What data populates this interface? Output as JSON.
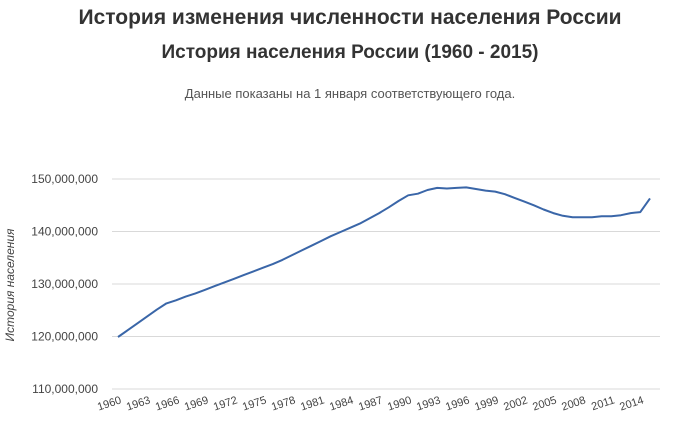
{
  "page": {
    "heading": "История изменения численности населения России"
  },
  "chart_data": {
    "type": "line",
    "title": "История населения России (1960 - 2015)",
    "subtitle": "Данные показаны на 1 января соответствующего года.",
    "ylabel": "История населения",
    "xlabel": "",
    "ylim": [
      110000000,
      150000000
    ],
    "yticks": [
      {
        "value": 110000000,
        "label": "110,000,000"
      },
      {
        "value": 120000000,
        "label": "120,000,000"
      },
      {
        "value": 130000000,
        "label": "130,000,000"
      },
      {
        "value": 140000000,
        "label": "140,000,000"
      },
      {
        "value": 150000000,
        "label": "150,000,000"
      }
    ],
    "xticks": [
      {
        "value": 1960,
        "label": "1960"
      },
      {
        "value": 1963,
        "label": "1963"
      },
      {
        "value": 1966,
        "label": "1966"
      },
      {
        "value": 1969,
        "label": "1969"
      },
      {
        "value": 1972,
        "label": "1972"
      },
      {
        "value": 1975,
        "label": "1975"
      },
      {
        "value": 1978,
        "label": "1978"
      },
      {
        "value": 1981,
        "label": "1981"
      },
      {
        "value": 1984,
        "label": "1984"
      },
      {
        "value": 1987,
        "label": "1987"
      },
      {
        "value": 1990,
        "label": "1990"
      },
      {
        "value": 1993,
        "label": "1993"
      },
      {
        "value": 1996,
        "label": "1996"
      },
      {
        "value": 1999,
        "label": "1999"
      },
      {
        "value": 2002,
        "label": "2002"
      },
      {
        "value": 2005,
        "label": "2005"
      },
      {
        "value": 2008,
        "label": "2008"
      },
      {
        "value": 2011,
        "label": "2011"
      },
      {
        "value": 2014,
        "label": "2014"
      }
    ],
    "grid": true,
    "line_color": "#3a66a8",
    "series": [
      {
        "x": [
          1960,
          1961,
          1962,
          1963,
          1964,
          1965,
          1966,
          1967,
          1968,
          1969,
          1970,
          1971,
          1972,
          1973,
          1974,
          1975,
          1976,
          1977,
          1978,
          1979,
          1980,
          1981,
          1982,
          1983,
          1984,
          1985,
          1986,
          1987,
          1988,
          1989,
          1990,
          1991,
          1992,
          1993,
          1994,
          1995,
          1996,
          1997,
          1998,
          1999,
          2000,
          2001,
          2002,
          2003,
          2004,
          2005,
          2006,
          2007,
          2008,
          2009,
          2010,
          2011,
          2012,
          2013,
          2014,
          2015
        ],
        "values": [
          119900000,
          121200000,
          122500000,
          123800000,
          125100000,
          126300000,
          126900000,
          127600000,
          128200000,
          128900000,
          129600000,
          130300000,
          131000000,
          131700000,
          132400000,
          133100000,
          133800000,
          134600000,
          135500000,
          136400000,
          137300000,
          138200000,
          139100000,
          139900000,
          140700000,
          141500000,
          142500000,
          143500000,
          144600000,
          145800000,
          146900000,
          147200000,
          147900000,
          148300000,
          148200000,
          148300000,
          148400000,
          148100000,
          147800000,
          147600000,
          147100000,
          146400000,
          145700000,
          145000000,
          144200000,
          143500000,
          143000000,
          142700000,
          142700000,
          142700000,
          142900000,
          142900000,
          143100000,
          143500000,
          143700000,
          146300000
        ]
      }
    ]
  }
}
